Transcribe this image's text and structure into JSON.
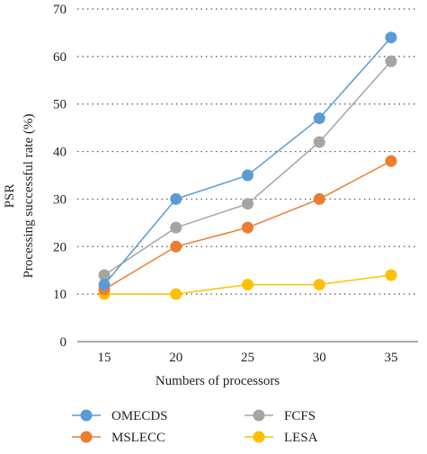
{
  "chart_data": {
    "type": "line",
    "xlabel": "Numbers of processors",
    "ylabel_line1": "PSR",
    "ylabel_line2": "Processing successful rate (%)",
    "x": [
      15,
      20,
      25,
      30,
      35
    ],
    "ylim": [
      0,
      70
    ],
    "yticks": [
      0,
      10,
      20,
      30,
      40,
      50,
      60,
      70
    ],
    "grid": "horizontal-dotted",
    "legend_position": "bottom",
    "series": [
      {
        "name": "OMECDS",
        "color": "#5b9bd5",
        "values": [
          12,
          30,
          35,
          47,
          64
        ]
      },
      {
        "name": "FCFS",
        "color": "#a5a5a5",
        "values": [
          14,
          24,
          29,
          42,
          59
        ]
      },
      {
        "name": "MSLECC",
        "color": "#ed7d31",
        "values": [
          11,
          20,
          24,
          30,
          38
        ]
      },
      {
        "name": "LESA",
        "color": "#ffc000",
        "values": [
          10,
          10,
          12,
          12,
          14
        ]
      }
    ]
  }
}
